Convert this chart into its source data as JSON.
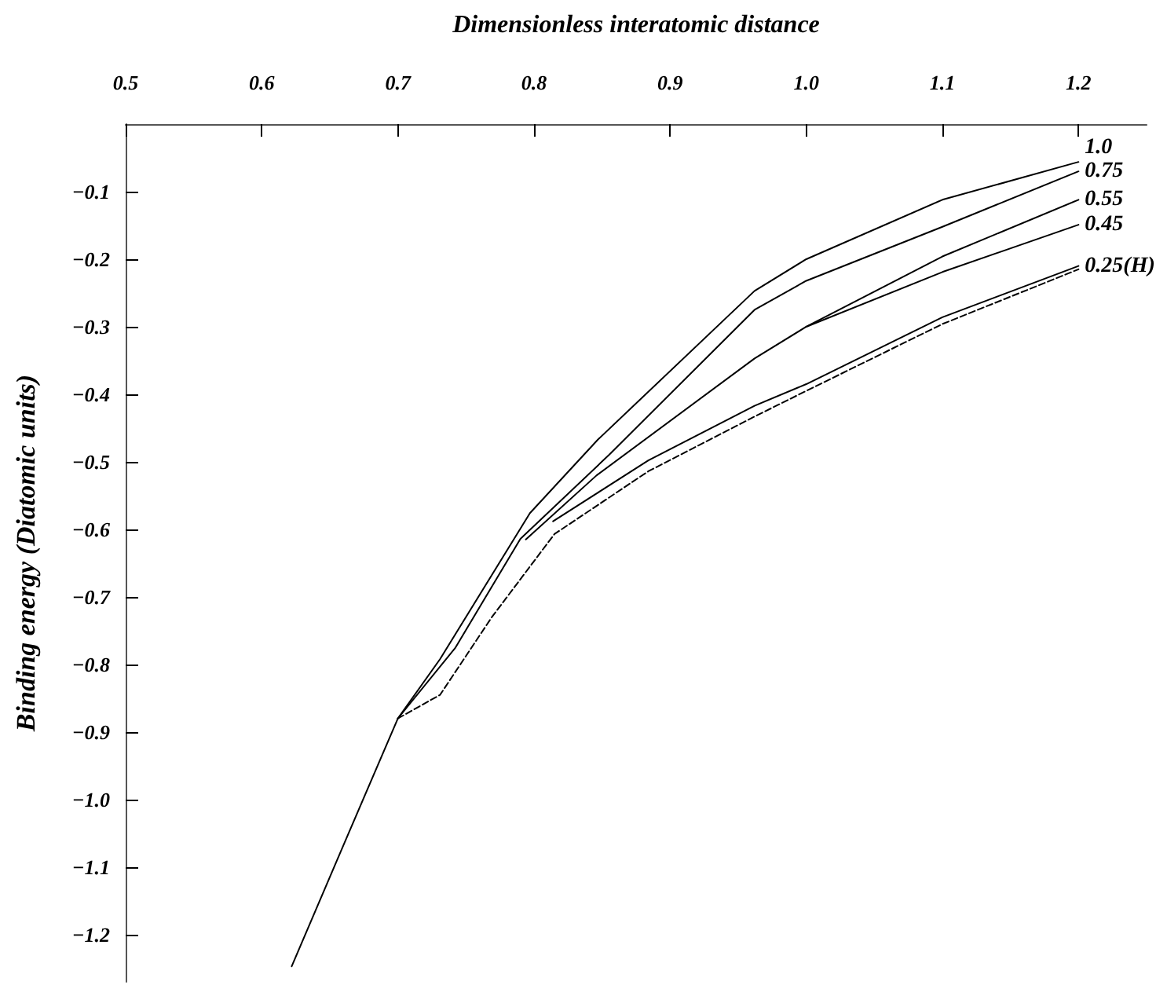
{
  "chart_data": {
    "type": "line",
    "xlabel": "Dimensionless interatomic distance",
    "ylabel": "Binding energy (Diatomic units)",
    "xlim": [
      0.5,
      1.25
    ],
    "ylim": [
      -1.27,
      0
    ],
    "xticks": [
      0.5,
      0.6,
      0.7,
      0.8,
      0.9,
      {
        "value": 1,
        "label": "1.0"
      },
      1.1,
      1.2
    ],
    "yticks": [
      {
        "value": -0.1,
        "label": "−0.1"
      },
      {
        "value": -0.2,
        "label": "−0.2"
      },
      {
        "value": -0.3,
        "label": "−0.3"
      },
      {
        "value": -0.4,
        "label": "−0.4"
      },
      {
        "value": -0.5,
        "label": "−0.5"
      },
      {
        "value": -0.6,
        "label": "−0.6"
      },
      {
        "value": -0.7,
        "label": "−0.7"
      },
      {
        "value": -0.8,
        "label": "−0.8"
      },
      {
        "value": -0.9,
        "label": "−0.9"
      },
      {
        "value": -1,
        "label": "−1.0"
      },
      {
        "value": -1.1,
        "label": "−1.1"
      },
      {
        "value": -1.2,
        "label": "−1.2"
      }
    ],
    "grid": false,
    "legend": false,
    "marker": "none",
    "series": [
      {
        "name": "1.0",
        "color": "#000000",
        "line_style": "solid",
        "x": [
          0.622,
          0.658,
          0.7,
          0.731,
          0.797,
          0.847,
          0.962,
          1.0,
          1.1,
          1.2
        ],
        "values": [
          -1.247,
          -1.077,
          -0.88,
          -0.792,
          -0.576,
          -0.467,
          -0.247,
          -0.2,
          -0.112,
          -0.056
        ]
      },
      {
        "name": "0.75",
        "color": "#000000",
        "line_style": "solid",
        "x": [
          0.7,
          0.742,
          0.79,
          0.855,
          0.962,
          1.0,
          1.1,
          1.2
        ],
        "values": [
          -0.88,
          -0.776,
          -0.614,
          -0.49,
          -0.275,
          -0.232,
          -0.152,
          -0.07
        ]
      },
      {
        "name": "0.55",
        "color": "#000000",
        "line_style": "solid",
        "x": [
          0.794,
          0.846,
          0.962,
          1.0,
          1.1,
          1.2
        ],
        "values": [
          -0.615,
          -0.52,
          -0.347,
          -0.3,
          -0.196,
          -0.112
        ]
      },
      {
        "name": "0.45",
        "color": "#000000",
        "line_style": "solid",
        "x": [
          1.0,
          1.1,
          1.2
        ],
        "values": [
          -0.3,
          -0.219,
          -0.149
        ]
      },
      {
        "name": "0.25(H)",
        "color": "#000000",
        "line_style": "solid",
        "x": [
          0.814,
          0.884,
          0.962,
          1.0,
          1.1,
          1.2
        ],
        "values": [
          -0.588,
          -0.498,
          -0.417,
          -0.385,
          -0.286,
          -0.21
        ]
      },
      {
        "color": "#000000",
        "line_style": "dashed",
        "x": [
          0.7,
          0.731,
          0.769,
          0.815,
          0.884,
          0.962,
          1.0,
          1.1,
          1.2
        ],
        "values": [
          -0.88,
          -0.845,
          -0.73,
          -0.607,
          -0.514,
          -0.433,
          -0.395,
          -0.296,
          -0.215
        ]
      }
    ]
  }
}
